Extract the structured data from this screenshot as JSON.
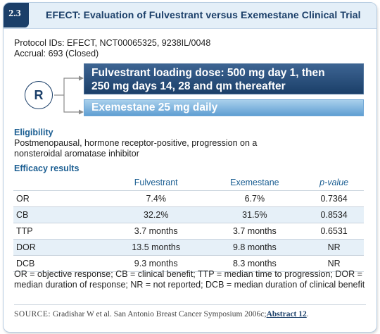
{
  "figure_number": "2.3",
  "title": "EFECT: Evaluation of Fulvestrant versus Exemestane Clinical Trial",
  "protocol_ids": "Protocol IDs: EFECT, NCT00065325, 9238IL/0048",
  "accrual": "Accrual: 693 (Closed)",
  "randomization_label": "R",
  "arms": [
    {
      "line1": "Fulvestrant loading dose: 500 mg day 1, then",
      "line2": "250 mg days 14, 28 and qm thereafter"
    },
    {
      "line1": "Exemestane 25 mg daily"
    }
  ],
  "eligibility": {
    "heading": "Eligibility",
    "text": "Postmenopausal, hormone receptor-positive, progression on a nonsteroidal aromatase inhibitor"
  },
  "efficacy": {
    "heading": "Efficacy results",
    "columns": [
      "",
      "Fulvestrant",
      "Exemestane",
      "p-value"
    ],
    "rows": [
      [
        "OR",
        "7.4%",
        "6.7%",
        "0.7364"
      ],
      [
        "CB",
        "32.2%",
        "31.5%",
        "0.8534"
      ],
      [
        "TTP",
        "3.7 months",
        "3.7 months",
        "0.6531"
      ],
      [
        "DOR",
        "13.5 months",
        "9.8 months",
        "NR"
      ],
      [
        "DCB",
        "9.3 months",
        "8.3 months",
        "NR"
      ]
    ]
  },
  "definitions": "OR = objective response; CB = clinical benefit; TTP = median time to progression; DOR = median duration of response; NR = not reported; DCB = median duration of clinical benefit",
  "source": {
    "label": "SOURCE:",
    "citation": "Gradishar W et al. San Antonio Breast Cancer Symposium 2006c;",
    "link": "Abstract 12",
    "end": "."
  },
  "colors": {
    "navy": "#1b3f69",
    "accent_blue": "#1b5e92",
    "light_arm": "#5f9ed2",
    "row_shade": "#e6f0f8"
  }
}
